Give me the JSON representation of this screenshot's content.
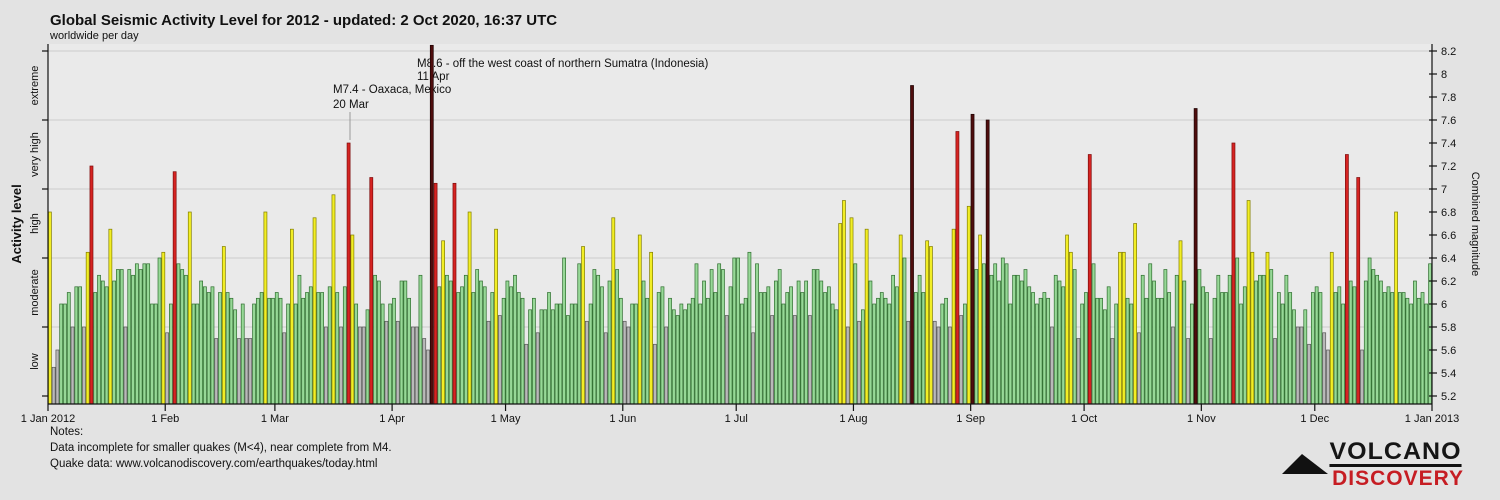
{
  "notes": {
    "label": "Notes:",
    "line1": "Data incomplete for smaller quakes (M<4), near complete from M4.",
    "line2": "Quake data: www.volcanodiscovery.com/earthquakes/today.html"
  },
  "logo": {
    "line1": "VOLCANO",
    "line2": "DISCOVERY"
  },
  "chart_data": {
    "type": "bar",
    "title": "Global Seismic Activity Level for 2012 - updated:  2 Oct 2020, 16:37 UTC",
    "subtitle": "worldwide per day",
    "ylabel_left": "Activity level",
    "ylabel_right": "Combined magnitude",
    "y_left_categories": [
      "low",
      "moderate",
      "high",
      "very high",
      "extreme"
    ],
    "y_right_range": [
      5.2,
      8.2
    ],
    "y_right_ticks": [
      "5.2",
      "5.4",
      "5.6",
      "5.8",
      "6",
      "6.2",
      "6.4",
      "6.6",
      "6.8",
      "7",
      "7.2",
      "7.4",
      "7.6",
      "7.8",
      "8",
      "8.2"
    ],
    "x_ticks": [
      "1 Jan 2012",
      "1 Feb",
      "1 Mar",
      "1 Apr",
      "1 May",
      "1 Jun",
      "1 Jul",
      "1 Aug",
      "1 Sep",
      "1 Oct",
      "1 Nov",
      "1 Dec",
      "1 Jan 2013"
    ],
    "month_day_offsets": [
      0,
      31,
      60,
      91,
      121,
      152,
      182,
      213,
      244,
      274,
      305,
      335,
      366
    ],
    "level_thresholds": {
      "low": [
        5.2,
        5.8
      ],
      "moderate": [
        5.8,
        6.4
      ],
      "high": [
        6.4,
        7.0
      ],
      "very_high": [
        7.0,
        7.6
      ],
      "extreme": [
        7.6,
        8.2
      ]
    },
    "colors": {
      "low_gray": "#b9b9b9",
      "moderate_green": "#97d897",
      "high_yellow": "#f2ee25",
      "very_high_red": "#d62422",
      "extreme_darkred": "#4f0d0d",
      "grid": "#d2d2d2",
      "plot_bg": "#eaeaea",
      "page_bg": "#e3e3e3"
    },
    "annotations": [
      {
        "lines": [
          "M8.6 - off the west coast of northern Sumatra (Indonesia)",
          "11 Apr"
        ]
      },
      {
        "lines": [
          "M7.4 - Oaxaca, Mexico",
          "20 Mar"
        ]
      }
    ],
    "grid_levels": [
      5.8,
      6.4,
      7.0,
      7.6,
      8.2
    ],
    "days": [
      "6.8y",
      "5.45a",
      "5.6a",
      "6.0g",
      "6.0g",
      "6.1g",
      "5.8a",
      "6.15g",
      "6.15g",
      "5.8a",
      "6.45y",
      "7.2r",
      "6.1g",
      "6.25g",
      "6.2g",
      "6.15g",
      "6.65y",
      "6.2g",
      "6.3g",
      "6.3g",
      "5.8a",
      "6.3g",
      "6.25g",
      "6.35g",
      "6.3g",
      "6.35g",
      "6.35g",
      "6.0g",
      "6.0g",
      "6.4g",
      "6.45y",
      "5.75a",
      "6.0g",
      "7.15r",
      "6.35g",
      "6.3g",
      "6.25g",
      "6.8y",
      "6.0g",
      "6.0g",
      "6.2g",
      "6.15g",
      "6.1g",
      "6.15g",
      "5.7a",
      "6.1g",
      "6.5y",
      "6.1g",
      "6.05g",
      "5.95g",
      "5.7a",
      "6.0g",
      "5.7a",
      "5.7a",
      "6.0g",
      "6.05g",
      "6.1g",
      "6.8y",
      "6.05g",
      "6.05g",
      "6.1g",
      "6.05g",
      "5.75a",
      "6.0g",
      "6.65y",
      "6.0g",
      "6.25g",
      "6.05g",
      "6.1g",
      "6.15g",
      "6.75y",
      "6.1g",
      "6.1g",
      "5.8a",
      "6.15g",
      "6.95y",
      "6.1g",
      "5.8a",
      "6.15g",
      "7.4r",
      "6.6y",
      "6.0g",
      "5.8a",
      "5.8a",
      "5.95g",
      "7.1r",
      "6.25g",
      "6.2g",
      "6.0g",
      "5.85a",
      "6.0g",
      "6.05g",
      "5.85a",
      "6.2g",
      "6.2g",
      "6.05g",
      "5.8a",
      "5.8a",
      "6.25g",
      "5.7a",
      "5.6a",
      "8.25R",
      "7.05r",
      "6.15g",
      "6.55y",
      "6.25g",
      "6.2g",
      "7.05r",
      "6.1g",
      "6.15g",
      "6.25g",
      "6.8y",
      "6.1g",
      "6.3g",
      "6.2g",
      "6.15g",
      "5.85a",
      "6.1g",
      "6.65y",
      "5.9a",
      "6.05g",
      "6.2g",
      "6.15g",
      "6.25g",
      "6.1g",
      "6.05g",
      "5.65a",
      "5.95g",
      "6.05g",
      "5.75a",
      "5.95g",
      "5.95g",
      "6.1g",
      "5.95g",
      "6.0g",
      "6.0g",
      "6.4g",
      "5.9g",
      "6.0g",
      "6.0g",
      "6.35g",
      "6.5y",
      "5.85a",
      "6.0g",
      "6.3g",
      "6.25g",
      "6.15g",
      "5.75a",
      "6.2g",
      "6.75y",
      "6.3g",
      "6.05g",
      "5.85a",
      "5.8a",
      "6.0g",
      "6.0g",
      "6.6y",
      "6.2g",
      "6.05g",
      "6.45y",
      "5.65a",
      "6.1g",
      "6.15g",
      "5.8a",
      "6.05g",
      "5.95g",
      "5.9g",
      "6.0g",
      "5.95g",
      "6.0g",
      "6.05g",
      "6.35g",
      "6.0g",
      "6.2g",
      "6.05g",
      "6.3g",
      "6.1g",
      "6.35g",
      "6.3g",
      "5.9a",
      "6.15g",
      "6.4g",
      "6.4g",
      "6.0g",
      "6.05g",
      "6.45g",
      "5.75a",
      "6.35g",
      "6.1g",
      "6.1g",
      "6.15g",
      "5.9a",
      "6.2g",
      "6.3g",
      "6.0g",
      "6.1g",
      "6.15g",
      "5.9a",
      "6.2g",
      "6.1g",
      "6.2g",
      "5.9a",
      "6.3g",
      "6.3g",
      "6.2g",
      "6.1g",
      "6.15g",
      "6.0g",
      "5.95g",
      "6.7y",
      "6.9y",
      "5.8a",
      "6.75y",
      "6.35g",
      "5.85a",
      "5.95g",
      "6.65y",
      "6.2g",
      "6.0g",
      "6.05g",
      "6.1g",
      "6.05g",
      "6.0g",
      "6.25g",
      "6.15g",
      "6.6y",
      "6.4g",
      "5.85a",
      "7.9R",
      "6.1g",
      "6.25g",
      "6.1g",
      "6.55y",
      "6.5y",
      "5.85a",
      "5.8a",
      "6.0g",
      "6.05g",
      "5.8a",
      "6.65y",
      "7.5r",
      "5.9a",
      "6.0g",
      "6.85y",
      "7.65R",
      "6.3g",
      "6.6y",
      "6.35g",
      "7.6R",
      "6.25g",
      "6.35g",
      "6.2g",
      "6.4g",
      "6.35g",
      "6.0g",
      "6.25g",
      "6.25g",
      "6.2g",
      "6.3g",
      "6.15g",
      "6.1g",
      "6.0g",
      "6.05g",
      "6.1g",
      "6.05g",
      "5.8a",
      "6.25g",
      "6.2g",
      "6.15g",
      "6.6y",
      "6.45y",
      "6.3g",
      "5.7a",
      "6.0g",
      "6.1g",
      "7.3r",
      "6.35g",
      "6.05g",
      "6.05g",
      "5.95g",
      "6.15g",
      "5.7a",
      "6.0g",
      "6.45y",
      "6.45y",
      "6.05g",
      "6.0g",
      "6.7y",
      "5.75a",
      "6.25g",
      "6.05g",
      "6.35g",
      "6.2g",
      "6.05g",
      "6.05g",
      "6.3g",
      "6.1g",
      "5.8a",
      "6.25g",
      "6.55y",
      "6.2g",
      "5.7a",
      "6.0g",
      "7.7R",
      "6.3g",
      "6.15g",
      "6.1g",
      "5.7a",
      "6.05g",
      "6.25g",
      "6.1g",
      "6.1g",
      "6.25g",
      "7.4r",
      "6.4g",
      "6.0g",
      "6.15g",
      "6.9y",
      "6.45y",
      "6.2g",
      "6.25g",
      "6.25g",
      "6.45y",
      "6.3g",
      "5.7a",
      "6.1g",
      "6.0g",
      "6.25g",
      "6.1g",
      "5.95g",
      "5.8a",
      "5.8a",
      "5.95g",
      "5.65a",
      "6.1g",
      "6.15g",
      "6.1g",
      "5.75a",
      "5.6a",
      "6.45y",
      "6.1g",
      "6.15g",
      "6.0g",
      "7.3r",
      "6.2g",
      "6.15g",
      "7.1r",
      "5.6a",
      "6.2g",
      "6.4g",
      "6.3g",
      "6.25g",
      "6.2g",
      "6.1g",
      "6.15g",
      "6.1g",
      "6.8y",
      "6.1g",
      "6.1g",
      "6.05g",
      "6.0g",
      "6.2g",
      "6.05g",
      "6.1g",
      "6.0g",
      "6.35g"
    ]
  }
}
